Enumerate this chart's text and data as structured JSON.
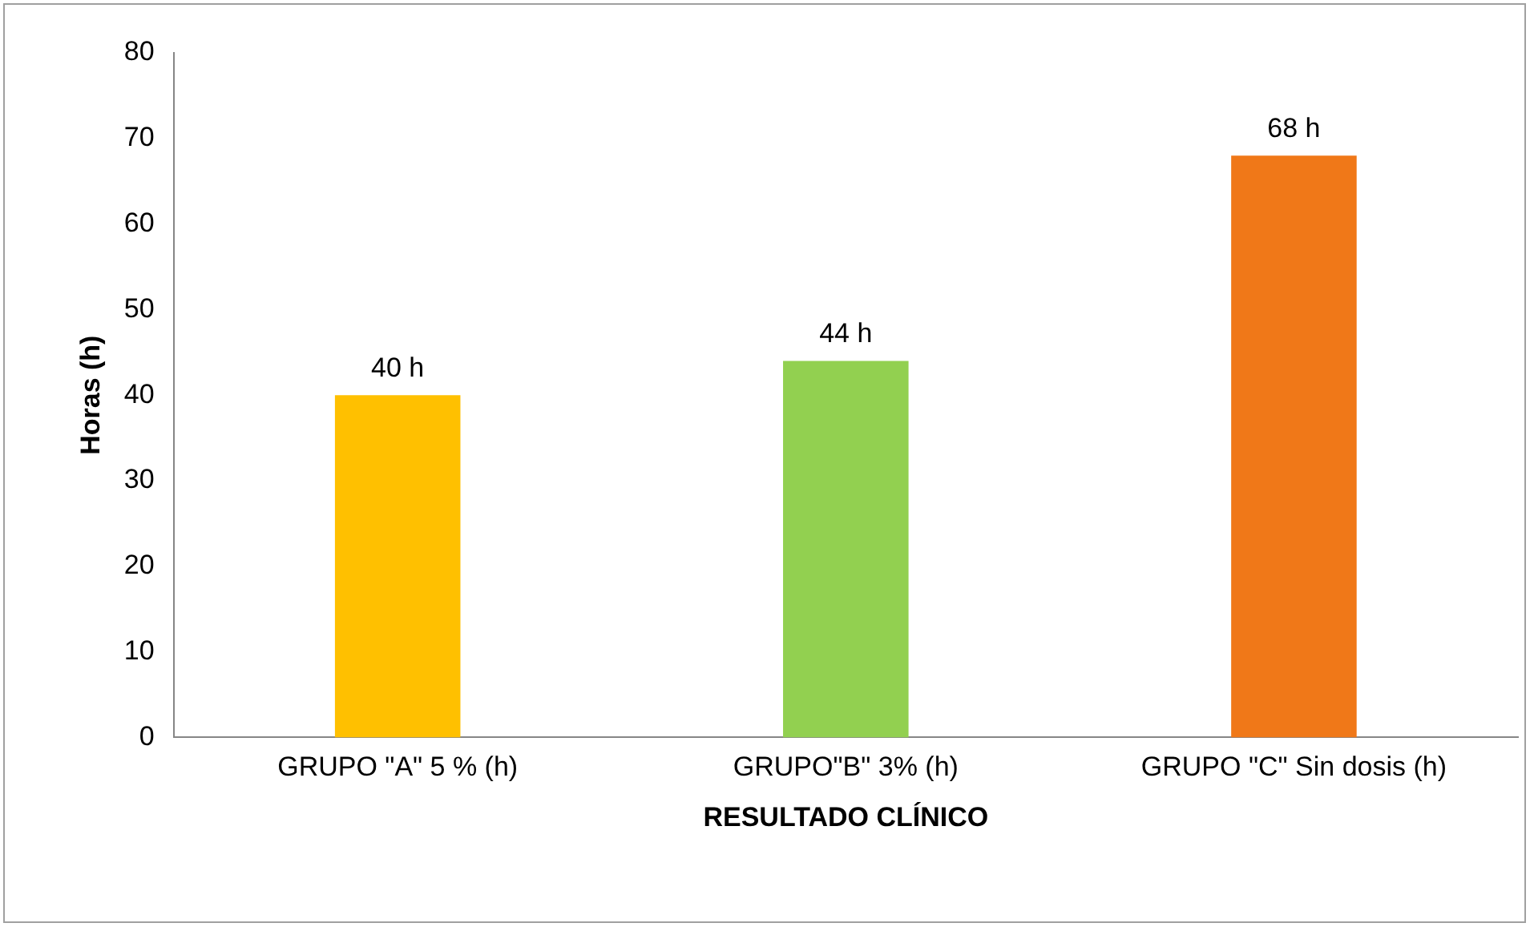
{
  "chart_data": {
    "type": "bar",
    "xlabel": "RESULTADO CLÍNICO",
    "ylabel": "Horas (h)",
    "categories": [
      "GRUPO \"A\" 5 % (h)",
      "GRUPO\"B\" 3% (h)",
      "GRUPO \"C\" Sin dosis (h)"
    ],
    "values": [
      40,
      44,
      68
    ],
    "colors": [
      "#ffc000",
      "#92d050",
      "#f07818"
    ],
    "value_labels": [
      "40 h",
      "44 h",
      "68 h"
    ],
    "ylim": [
      0,
      80
    ],
    "yticks": [
      0,
      10,
      20,
      30,
      40,
      50,
      60,
      70,
      80
    ],
    "grid": false,
    "legend": false
  }
}
